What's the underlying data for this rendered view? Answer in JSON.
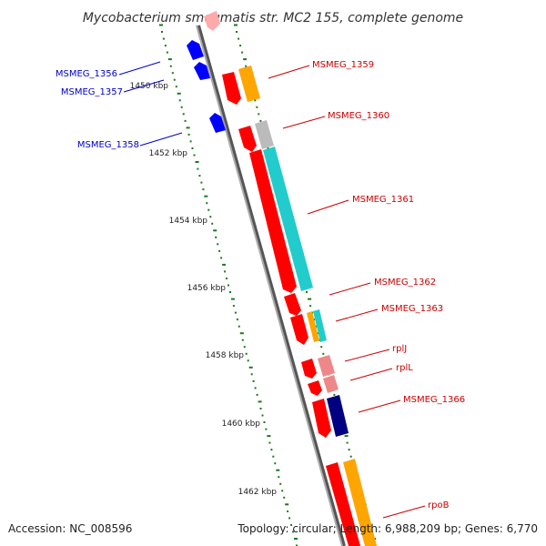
{
  "header": {
    "title": "Mycobacterium smegmatis str. MC2 155, complete genome"
  },
  "footer": {
    "accession": "Accession: NC_008596",
    "summary": "Topology: circular; Length: 6,988,209 bp; Genes: 6,770"
  },
  "scale": {
    "ticks": [
      "1450 kbp",
      "1452 kbp",
      "1454 kbp",
      "1456 kbp",
      "1458 kbp",
      "1460 kbp",
      "1462 kbp"
    ]
  },
  "colors": {
    "forward_gene_label": "#cc0000",
    "reverse_gene_label": "#0000cc",
    "backbone": "#888888",
    "tick_dots": "#1a7a1a",
    "gene_red": "#ff0000",
    "gene_blue": "#0000ff",
    "gene_orange": "#ffa500",
    "gene_cyan": "#22cccc",
    "gene_grey": "#bbbbbb",
    "gene_pink": "#ee8888",
    "gene_navy": "#000080"
  },
  "genes": [
    {
      "label": "MSMEG_1356",
      "strand": "reverse"
    },
    {
      "label": "MSMEG_1357",
      "strand": "reverse"
    },
    {
      "label": "MSMEG_1358",
      "strand": "reverse"
    },
    {
      "label": "MSMEG_1359",
      "strand": "forward"
    },
    {
      "label": "MSMEG_1360",
      "strand": "forward"
    },
    {
      "label": "MSMEG_1361",
      "strand": "forward"
    },
    {
      "label": "MSMEG_1362",
      "strand": "forward"
    },
    {
      "label": "MSMEG_1363",
      "strand": "forward"
    },
    {
      "label": "rplJ",
      "strand": "forward"
    },
    {
      "label": "rplL",
      "strand": "forward"
    },
    {
      "label": "MSMEG_1366",
      "strand": "forward"
    },
    {
      "label": "rpoB",
      "strand": "forward"
    }
  ]
}
